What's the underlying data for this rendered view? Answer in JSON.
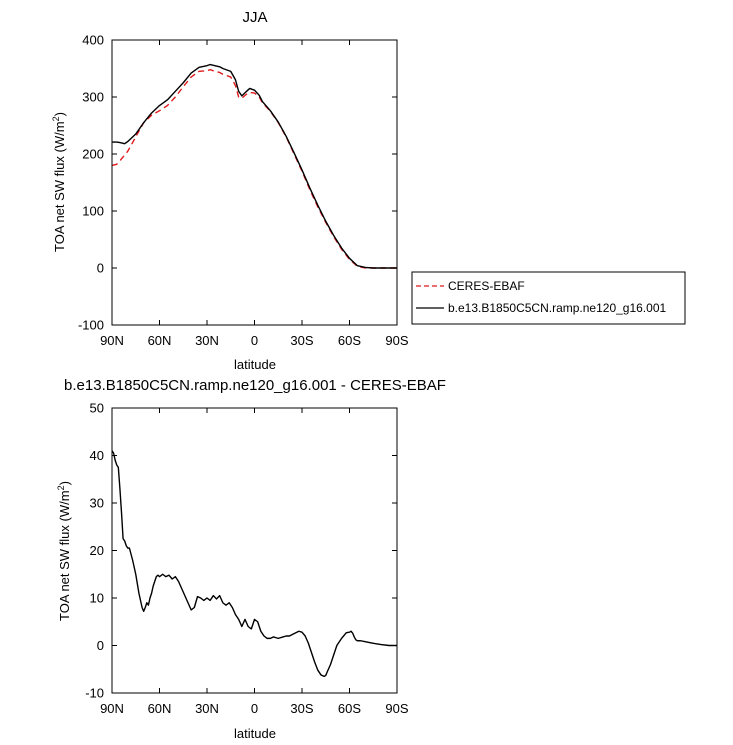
{
  "chart_data": [
    {
      "type": "line",
      "title": "JJA",
      "xlabel": "latitude",
      "ylabel": "TOA net SW flux (W/m",
      "ylabel_sup": "2",
      "ylabel_close": ")",
      "xlim": [
        90,
        -90
      ],
      "ylim": [
        -100,
        400
      ],
      "xticks": [
        90,
        60,
        30,
        0,
        -30,
        -60,
        -90
      ],
      "xtick_labels": [
        "90N",
        "60N",
        "30N",
        "0",
        "30S",
        "60S",
        "90S"
      ],
      "yticks": [
        -100,
        0,
        100,
        200,
        300,
        400
      ],
      "ytick_labels": [
        "-100",
        "0",
        "100",
        "200",
        "300",
        "400"
      ],
      "legend": {
        "placement": "right"
      },
      "series": [
        {
          "name": "CERES-EBAF",
          "color": "#e0191b",
          "dash": "dashed",
          "x": [
            90,
            87,
            85,
            80,
            75,
            70,
            65,
            60,
            55,
            50,
            45,
            40,
            35,
            30,
            28,
            25,
            22,
            20,
            15,
            12,
            10,
            8,
            5,
            3,
            0,
            -3,
            -5,
            -10,
            -15,
            -20,
            -25,
            -30,
            -35,
            -40,
            -45,
            -50,
            -55,
            -60,
            -65,
            -70,
            -75,
            -80,
            -85,
            -90
          ],
          "y": [
            180,
            182,
            188,
            205,
            230,
            255,
            268,
            276,
            285,
            300,
            318,
            335,
            345,
            346,
            348,
            345,
            343,
            340,
            335,
            320,
            300,
            298,
            305,
            308,
            307,
            300,
            290,
            275,
            255,
            230,
            200,
            170,
            137,
            107,
            80,
            55,
            33,
            15,
            3,
            0,
            0,
            0,
            0,
            0
          ]
        },
        {
          "name": "b.e13.B1850C5CN.ramp.ne120_g16.001",
          "color": "#000000",
          "dash": "solid",
          "x": [
            90,
            87,
            85,
            82,
            80,
            75,
            70,
            65,
            60,
            55,
            50,
            45,
            40,
            35,
            30,
            28,
            25,
            22,
            20,
            15,
            12,
            10,
            8,
            5,
            3,
            0,
            -3,
            -5,
            -10,
            -15,
            -20,
            -25,
            -30,
            -35,
            -40,
            -45,
            -50,
            -55,
            -60,
            -65,
            -70,
            -75,
            -80,
            -85,
            -90
          ],
          "y": [
            221,
            221,
            220,
            218,
            222,
            235,
            255,
            272,
            285,
            295,
            310,
            325,
            342,
            352,
            355,
            357,
            355,
            353,
            350,
            345,
            330,
            310,
            302,
            310,
            315,
            312,
            303,
            292,
            276,
            256,
            231,
            202,
            172,
            140,
            110,
            82,
            57,
            35,
            17,
            4,
            1,
            0,
            0,
            0,
            0
          ]
        }
      ]
    },
    {
      "type": "line",
      "title": "b.e13.B1850C5CN.ramp.ne120_g16.001 - CERES-EBAF",
      "xlabel": "latitude",
      "ylabel": "TOA net SW flux (W/m",
      "ylabel_sup": "2",
      "ylabel_close": ")",
      "xlim": [
        90,
        -90
      ],
      "ylim": [
        -10,
        50
      ],
      "xticks": [
        90,
        60,
        30,
        0,
        -30,
        -60,
        -90
      ],
      "xtick_labels": [
        "90N",
        "60N",
        "30N",
        "0",
        "30S",
        "60S",
        "90S"
      ],
      "yticks": [
        -10,
        0,
        10,
        20,
        30,
        40,
        50
      ],
      "ytick_labels": [
        "-10",
        "0",
        "10",
        "20",
        "30",
        "40",
        "50"
      ],
      "series": [
        {
          "color": "#000000",
          "dash": "solid",
          "x": [
            90,
            89,
            88,
            87,
            86,
            85,
            84,
            83,
            82,
            81,
            80,
            79,
            77,
            75,
            73,
            71,
            70,
            69,
            68,
            67,
            66,
            65,
            64,
            63,
            62,
            61,
            60,
            58,
            56,
            54,
            52,
            50,
            48,
            46,
            44,
            42,
            40,
            38,
            36,
            34,
            32,
            30,
            28,
            26,
            24,
            22,
            20,
            18,
            16,
            14,
            12,
            10,
            8,
            6,
            4,
            2,
            0,
            -2,
            -4,
            -6,
            -8,
            -10,
            -12,
            -15,
            -18,
            -20,
            -22,
            -25,
            -28,
            -30,
            -32,
            -34,
            -36,
            -38,
            -40,
            -42,
            -44,
            -45,
            -46,
            -48,
            -50,
            -52,
            -55,
            -58,
            -60,
            -61,
            -62,
            -63,
            -64,
            -65,
            -67,
            -70,
            -73,
            -76,
            -80,
            -85,
            -90
          ],
          "y": [
            41.0,
            40.5,
            39,
            38,
            37.5,
            33,
            28,
            22.5,
            22,
            21,
            20.5,
            20.5,
            18,
            15,
            11,
            8,
            7.2,
            8,
            9,
            8.5,
            10,
            11,
            12.5,
            13.5,
            14.5,
            14.8,
            14.5,
            15,
            14.5,
            14.8,
            14,
            14.5,
            13.5,
            12,
            10.5,
            9,
            7.5,
            8,
            10.3,
            10,
            9.5,
            10,
            9.5,
            10.5,
            9.8,
            10.5,
            9,
            8.5,
            9,
            8,
            6.5,
            5.5,
            4.0,
            5.5,
            4.0,
            3.5,
            5.5,
            5.0,
            3.0,
            2.0,
            1.5,
            1.5,
            1.8,
            1.5,
            1.8,
            2.0,
            2.0,
            2.5,
            3.0,
            2.8,
            2.0,
            0.5,
            -1.5,
            -3.5,
            -5.2,
            -6.2,
            -6.5,
            -6.3,
            -5.5,
            -4.0,
            -2.0,
            0.0,
            1.5,
            2.7,
            2.8,
            3.0,
            2.6,
            1.8,
            1.2,
            1.0,
            1.0,
            0.8,
            0.6,
            0.4,
            0.2,
            0.0,
            0.0
          ]
        }
      ]
    }
  ]
}
